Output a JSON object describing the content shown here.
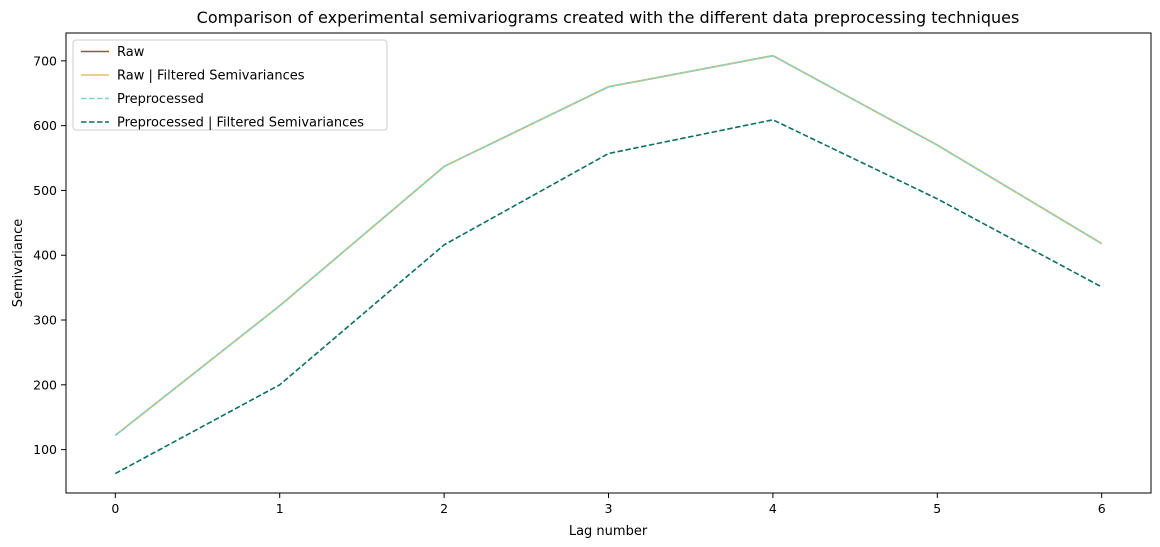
{
  "chart_data": {
    "type": "line",
    "title": "Comparison of experimental semivariograms created with the different data preprocessing techniques",
    "xlabel": "Lag number",
    "ylabel": "Semivariance",
    "x": [
      0,
      1,
      2,
      3,
      4,
      5,
      6
    ],
    "xlim": [
      -0.3,
      6.3
    ],
    "ylim": [
      33,
      743
    ],
    "xticks": [
      0,
      1,
      2,
      3,
      4,
      5,
      6
    ],
    "yticks": [
      100,
      200,
      300,
      400,
      500,
      600,
      700
    ],
    "grid": false,
    "legend_position": "upper-left",
    "series": [
      {
        "name": "Raw",
        "values": [
          122,
          322,
          537,
          660,
          708,
          570,
          418
        ],
        "color": "#9b5a1a",
        "dash": "solid"
      },
      {
        "name": "Raw | Filtered Semivariances",
        "values": [
          122,
          322,
          537,
          660,
          708,
          570,
          418
        ],
        "color": "#e3bf6e",
        "dash": "solid"
      },
      {
        "name": "Preprocessed",
        "values": [
          122,
          322,
          537,
          660,
          708,
          570,
          418
        ],
        "color": "#7fd3c7",
        "dash": "dashed"
      },
      {
        "name": "Preprocessed | Filtered Semivariances",
        "values": [
          63,
          200,
          416,
          557,
          609,
          487,
          351
        ],
        "color": "#0d6f64",
        "dash": "dashed"
      }
    ]
  }
}
